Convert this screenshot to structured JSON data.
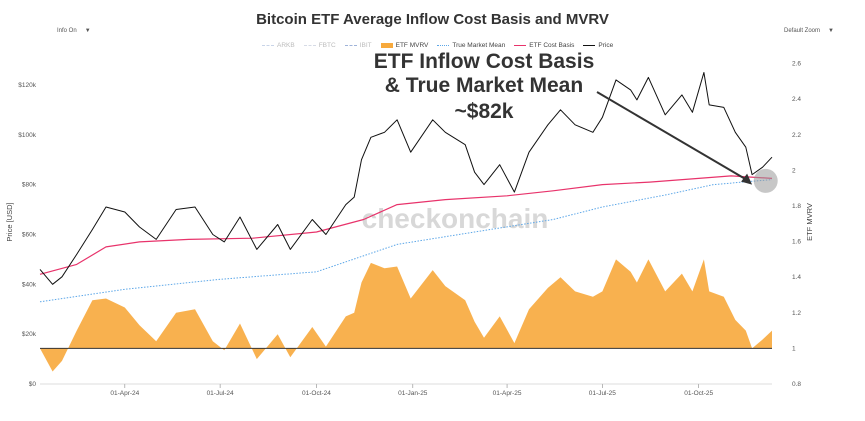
{
  "chart_data": {
    "type": "line",
    "title": "Bitcoin ETF Average Inflow Cost Basis and MVRV",
    "ylabel_left": "Price [USD]",
    "ylabel_right": "ETF MVRV",
    "y_left_ticks": [
      "$0",
      "$20k",
      "$40k",
      "$60k",
      "$80k",
      "$100k",
      "$120k"
    ],
    "y_left_range": [
      0,
      130000
    ],
    "y_right_ticks": [
      "0.8",
      "1",
      "1.2",
      "1.4",
      "1.6",
      "1.8",
      "2",
      "2.2",
      "2.4",
      "2.6"
    ],
    "y_right_range": [
      0.8,
      2.62
    ],
    "x_range": [
      "2024-01-11",
      "2025-12-10"
    ],
    "x_ticks": [
      {
        "date": "2024-04-01",
        "label": "01-Apr-24"
      },
      {
        "date": "2024-07-01",
        "label": "01-Jul-24"
      },
      {
        "date": "2024-10-01",
        "label": "01-Oct-24"
      },
      {
        "date": "2025-01-01",
        "label": "01-Jan-25"
      },
      {
        "date": "2025-04-01",
        "label": "01-Apr-25"
      },
      {
        "date": "2025-07-01",
        "label": "01-Jul-25"
      },
      {
        "date": "2025-10-01",
        "label": "01-Oct-25"
      }
    ],
    "legend": {
      "position": "top",
      "items": [
        {
          "name": "ARKB",
          "color": "#c8d4e8",
          "style": "dashed",
          "visible": false
        },
        {
          "name": "FBTC",
          "color": "#d6dbe6",
          "style": "dashed",
          "visible": false
        },
        {
          "name": "IBIT",
          "color": "#9fb3d9",
          "style": "dashed",
          "visible": false
        },
        {
          "name": "ETF MVRV",
          "color": "#f7a93c",
          "style": "fill",
          "visible": true
        },
        {
          "name": "True Market Mean",
          "color": "#5da7e8",
          "style": "dotted",
          "visible": true
        },
        {
          "name": "ETF Cost Basis",
          "color": "#e8336b",
          "style": "solid",
          "visible": true
        },
        {
          "name": "Price",
          "color": "#111111",
          "style": "solid",
          "visible": true
        }
      ]
    },
    "series": [
      {
        "name": "Price",
        "axis": "left",
        "color": "#111111",
        "x": [
          "2024-01-11",
          "2024-01-23",
          "2024-02-01",
          "2024-02-15",
          "2024-03-01",
          "2024-03-14",
          "2024-04-01",
          "2024-04-15",
          "2024-05-01",
          "2024-05-20",
          "2024-06-07",
          "2024-06-24",
          "2024-07-05",
          "2024-07-20",
          "2024-08-05",
          "2024-08-25",
          "2024-09-06",
          "2024-09-27",
          "2024-10-10",
          "2024-10-29",
          "2024-11-06",
          "2024-11-13",
          "2024-11-22",
          "2024-12-05",
          "2024-12-17",
          "2024-12-30",
          "2025-01-20",
          "2025-02-01",
          "2025-02-20",
          "2025-03-01",
          "2025-03-10",
          "2025-03-25",
          "2025-04-08",
          "2025-04-22",
          "2025-05-10",
          "2025-05-22",
          "2025-06-05",
          "2025-06-22",
          "2025-07-01",
          "2025-07-14",
          "2025-07-28",
          "2025-08-03",
          "2025-08-14",
          "2025-08-30",
          "2025-09-15",
          "2025-09-25",
          "2025-10-06",
          "2025-10-11",
          "2025-10-25",
          "2025-11-05",
          "2025-11-15",
          "2025-11-21",
          "2025-12-01",
          "2025-12-10"
        ],
        "y": [
          46000,
          40000,
          43000,
          52000,
          62000,
          71000,
          69000,
          63000,
          58000,
          70000,
          71000,
          60000,
          57000,
          67000,
          54000,
          64000,
          54000,
          66000,
          60000,
          72000,
          75000,
          90000,
          99000,
          101000,
          106000,
          93000,
          106000,
          101000,
          96000,
          85000,
          80000,
          88000,
          77000,
          93000,
          104000,
          110000,
          104000,
          101000,
          107000,
          122000,
          118000,
          114000,
          123000,
          108000,
          116000,
          109000,
          125000,
          112000,
          111000,
          101000,
          95000,
          84000,
          87000,
          91000
        ]
      },
      {
        "name": "ETF Cost Basis",
        "axis": "left",
        "color": "#e8336b",
        "x": [
          "2024-01-11",
          "2024-02-15",
          "2024-03-14",
          "2024-04-15",
          "2024-06-01",
          "2024-08-01",
          "2024-10-01",
          "2024-11-15",
          "2024-12-17",
          "2025-02-01",
          "2025-04-01",
          "2025-05-15",
          "2025-07-01",
          "2025-08-15",
          "2025-10-01",
          "2025-11-01",
          "2025-12-10"
        ],
        "y": [
          44000,
          48000,
          55000,
          57000,
          58000,
          58500,
          61000,
          66000,
          72000,
          74000,
          75500,
          77500,
          80000,
          81000,
          82500,
          83500,
          82500
        ]
      },
      {
        "name": "True Market Mean",
        "axis": "left",
        "color": "#5da7e8",
        "x": [
          "2024-01-11",
          "2024-04-01",
          "2024-07-01",
          "2024-10-01",
          "2024-12-17",
          "2025-03-01",
          "2025-05-15",
          "2025-07-01",
          "2025-09-01",
          "2025-10-15",
          "2025-12-10"
        ],
        "y": [
          33000,
          38000,
          42000,
          45000,
          56000,
          61000,
          66000,
          71000,
          76000,
          80000,
          82000
        ]
      },
      {
        "name": "ETF MVRV",
        "axis": "right",
        "color": "#f7a93c",
        "x": [
          "2024-01-11",
          "2024-01-23",
          "2024-02-01",
          "2024-02-15",
          "2024-03-01",
          "2024-03-14",
          "2024-04-01",
          "2024-04-15",
          "2024-05-01",
          "2024-05-20",
          "2024-06-07",
          "2024-06-24",
          "2024-07-05",
          "2024-07-20",
          "2024-08-05",
          "2024-08-25",
          "2024-09-06",
          "2024-09-27",
          "2024-10-10",
          "2024-10-29",
          "2024-11-06",
          "2024-11-13",
          "2024-11-22",
          "2024-12-05",
          "2024-12-17",
          "2024-12-30",
          "2025-01-20",
          "2025-02-01",
          "2025-02-20",
          "2025-03-01",
          "2025-03-10",
          "2025-03-25",
          "2025-04-08",
          "2025-04-22",
          "2025-05-10",
          "2025-05-22",
          "2025-06-05",
          "2025-06-22",
          "2025-07-01",
          "2025-07-14",
          "2025-07-28",
          "2025-08-03",
          "2025-08-14",
          "2025-08-30",
          "2025-09-15",
          "2025-09-25",
          "2025-10-06",
          "2025-10-11",
          "2025-10-25",
          "2025-11-05",
          "2025-11-15",
          "2025-11-21",
          "2025-12-01",
          "2025-12-10"
        ],
        "y": [
          1.0,
          0.87,
          0.93,
          1.1,
          1.27,
          1.28,
          1.23,
          1.13,
          1.04,
          1.2,
          1.22,
          1.04,
          0.99,
          1.14,
          0.94,
          1.08,
          0.95,
          1.12,
          1.01,
          1.18,
          1.2,
          1.37,
          1.48,
          1.45,
          1.46,
          1.28,
          1.44,
          1.35,
          1.27,
          1.15,
          1.06,
          1.18,
          1.03,
          1.22,
          1.34,
          1.4,
          1.32,
          1.29,
          1.32,
          1.5,
          1.43,
          1.37,
          1.5,
          1.32,
          1.42,
          1.32,
          1.5,
          1.32,
          1.29,
          1.16,
          1.1,
          1.0,
          1.05,
          1.1
        ]
      }
    ],
    "annotations": {
      "lines": [
        "ETF Inflow Cost Basis",
        "& True Market Mean",
        "~$82k"
      ],
      "arrow_target_date": "2025-11-21",
      "arrow_target_value": 80000
    },
    "watermark": "checkonchain",
    "grid": false
  },
  "controls": {
    "info_label": "Info On",
    "info_caret": "▼",
    "zoom_label": "Default Zoom",
    "zoom_caret": "▼"
  }
}
